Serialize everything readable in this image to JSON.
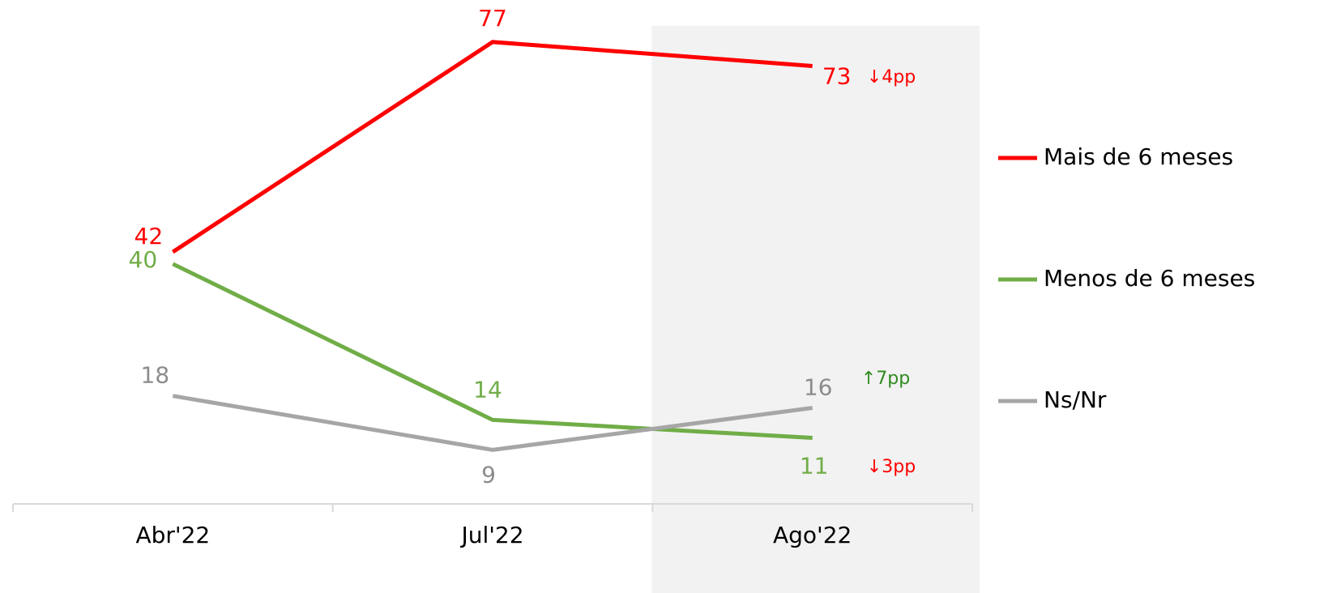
{
  "chart_data": {
    "type": "line",
    "categories": [
      "Abr'22",
      "Jul'22",
      "Ago'22"
    ],
    "series": [
      {
        "name": "Mais de 6 meses",
        "color": "#ff0000",
        "values": [
          42,
          77,
          73
        ]
      },
      {
        "name": "Menos de 6 meses",
        "color": "#70ad47",
        "values": [
          40,
          14,
          11
        ]
      },
      {
        "name": "Ns/Nr",
        "color": "#a6a6a6",
        "values": [
          18,
          9,
          16
        ]
      }
    ],
    "annotations": [
      {
        "text": "↓4pp",
        "color": "#ff0000"
      },
      {
        "text": "↑7pp",
        "color": "#2e8b1f"
      },
      {
        "text": "↓3pp",
        "color": "#ff0000"
      }
    ],
    "ylim": [
      0,
      84
    ],
    "highlight": 2,
    "legend": "right"
  }
}
